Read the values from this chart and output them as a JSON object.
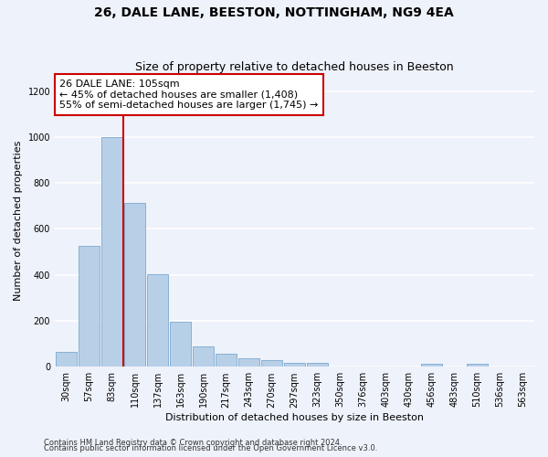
{
  "title1": "26, DALE LANE, BEESTON, NOTTINGHAM, NG9 4EA",
  "title2": "Size of property relative to detached houses in Beeston",
  "xlabel": "Distribution of detached houses by size in Beeston",
  "ylabel": "Number of detached properties",
  "categories": [
    "30sqm",
    "57sqm",
    "83sqm",
    "110sqm",
    "137sqm",
    "163sqm",
    "190sqm",
    "217sqm",
    "243sqm",
    "270sqm",
    "297sqm",
    "323sqm",
    "350sqm",
    "376sqm",
    "403sqm",
    "430sqm",
    "456sqm",
    "483sqm",
    "510sqm",
    "536sqm",
    "563sqm"
  ],
  "values": [
    65,
    525,
    1000,
    715,
    405,
    195,
    90,
    58,
    38,
    30,
    18,
    18,
    0,
    0,
    0,
    0,
    12,
    0,
    12,
    0,
    0
  ],
  "bar_color": "#b8cfe8",
  "bar_edge_color": "#7aaad0",
  "annotation_title": "26 DALE LANE: 105sqm",
  "annotation_line1": "← 45% of detached houses are smaller (1,408)",
  "annotation_line2": "55% of semi-detached houses are larger (1,745) →",
  "annotation_box_color": "#ffffff",
  "annotation_box_edge": "#cc0000",
  "ylim": [
    0,
    1270
  ],
  "yticks": [
    0,
    200,
    400,
    600,
    800,
    1000,
    1200
  ],
  "footer1": "Contains HM Land Registry data © Crown copyright and database right 2024.",
  "footer2": "Contains public sector information licensed under the Open Government Licence v3.0.",
  "bg_color": "#eef2fa",
  "grid_color": "#ffffff",
  "title1_fontsize": 10,
  "title2_fontsize": 9,
  "xlabel_fontsize": 8,
  "ylabel_fontsize": 8,
  "tick_fontsize": 7,
  "footer_fontsize": 6,
  "ann_fontsize": 8
}
